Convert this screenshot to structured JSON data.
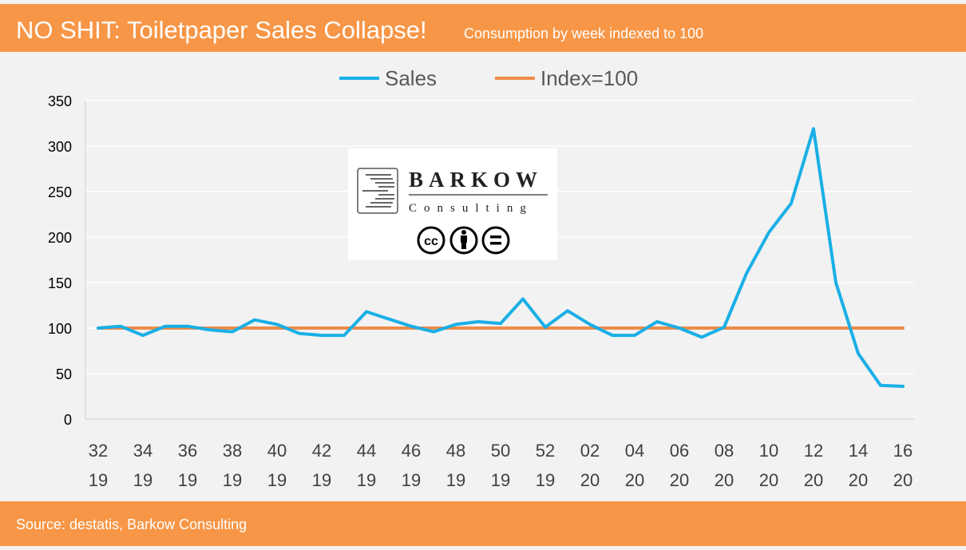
{
  "header": {
    "title": "NO SHIT: Toiletpaper Sales Collapse!",
    "subtitle": "Consumption by week  indexed to 100"
  },
  "footer": {
    "source": "Source: destatis, Barkow Consulting"
  },
  "logo": {
    "name": "BARKOW",
    "tagline": "Consulting",
    "license_icons": [
      "cc-icon",
      "attribution-icon",
      "no-derivatives-icon"
    ]
  },
  "colors": {
    "banner": "#f79646",
    "sales": "#1aafe6",
    "index": "#ed8b48",
    "background": "#f2f2f2"
  },
  "chart_data": {
    "type": "line",
    "title": "NO SHIT: Toiletpaper Sales Collapse!",
    "subtitle": "Consumption by week  indexed to 100",
    "x_tick_labels": [
      [
        "32",
        "19"
      ],
      [
        "34",
        "19"
      ],
      [
        "36",
        "19"
      ],
      [
        "38",
        "19"
      ],
      [
        "40",
        "19"
      ],
      [
        "42",
        "19"
      ],
      [
        "44",
        "19"
      ],
      [
        "46",
        "19"
      ],
      [
        "48",
        "19"
      ],
      [
        "50",
        "19"
      ],
      [
        "52",
        "19"
      ],
      [
        "02",
        "20"
      ],
      [
        "04",
        "20"
      ],
      [
        "06",
        "20"
      ],
      [
        "08",
        "20"
      ],
      [
        "10",
        "20"
      ],
      [
        "12",
        "20"
      ],
      [
        "14",
        "20"
      ],
      [
        "16",
        "20"
      ]
    ],
    "y_ticks": [
      0,
      50,
      100,
      150,
      200,
      250,
      300,
      350
    ],
    "ylim": [
      0,
      350
    ],
    "grid": true,
    "legend_position": "top",
    "series": [
      {
        "name": "Sales",
        "color": "#1aafe6",
        "values": [
          100,
          102,
          92,
          102,
          102,
          98,
          96,
          109,
          104,
          94,
          92,
          92,
          118,
          110,
          102,
          96,
          104,
          107,
          105,
          132,
          101,
          119,
          104,
          92,
          92,
          107,
          100,
          90,
          101,
          160,
          205,
          237,
          319,
          150,
          72,
          37,
          36
        ]
      },
      {
        "name": "Index=100",
        "color": "#ed8b48",
        "values": [
          100,
          100,
          100,
          100,
          100,
          100,
          100,
          100,
          100,
          100,
          100,
          100,
          100,
          100,
          100,
          100,
          100,
          100,
          100,
          100,
          100,
          100,
          100,
          100,
          100,
          100,
          100,
          100,
          100,
          100,
          100,
          100,
          100,
          100,
          100,
          100,
          100
        ]
      }
    ]
  }
}
